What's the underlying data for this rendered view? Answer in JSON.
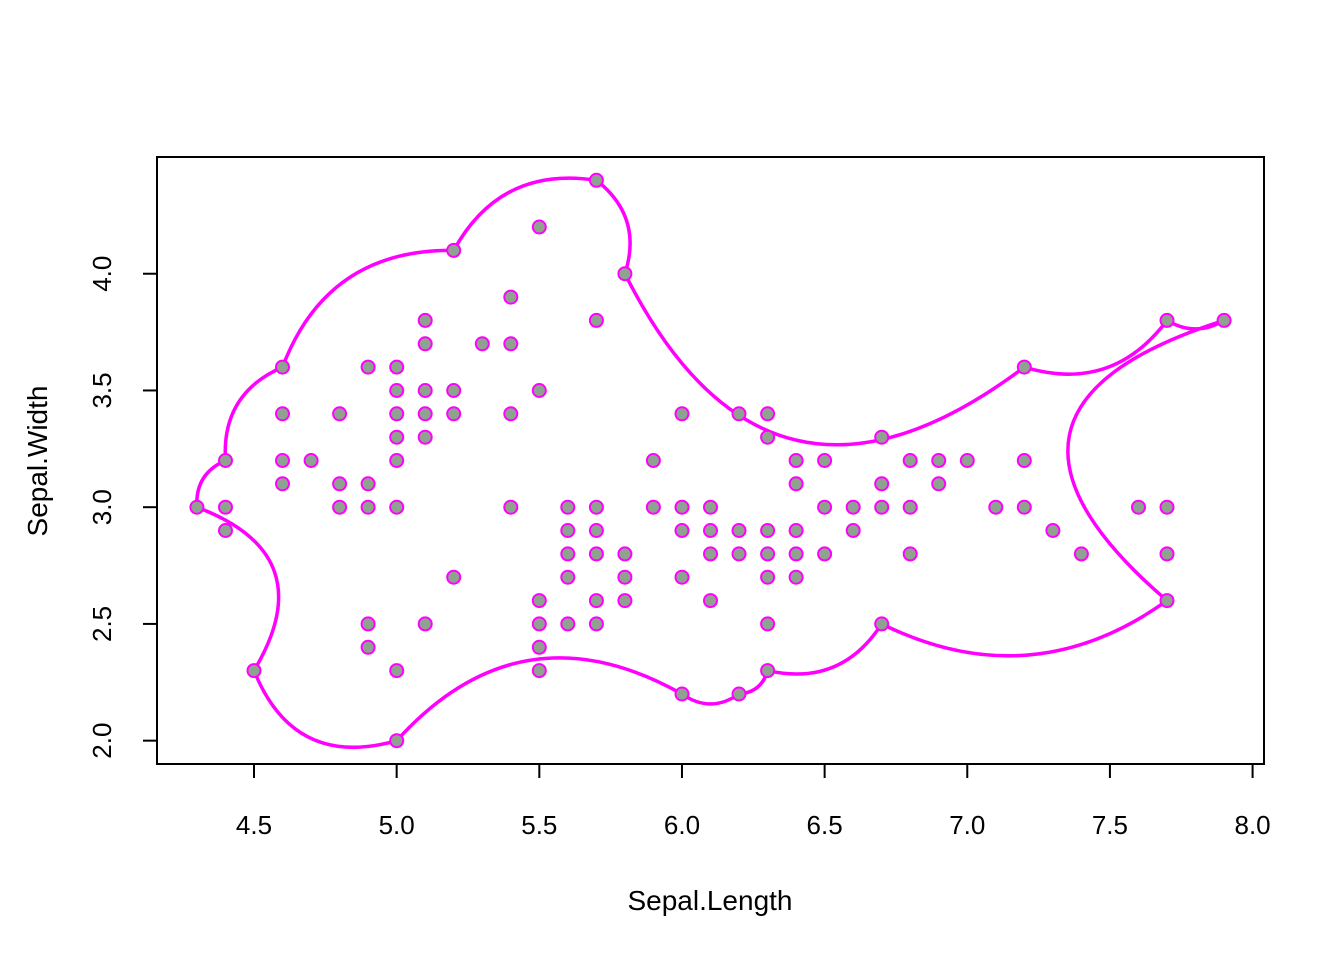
{
  "chart_data": {
    "type": "scatter",
    "title": "",
    "xlabel": "Sepal.Length",
    "ylabel": "Sepal.Width",
    "xlim": [
      4.16,
      8.04
    ],
    "ylim": [
      1.9,
      4.5
    ],
    "x_ticks": [
      4.5,
      5.0,
      5.5,
      6.0,
      6.5,
      7.0,
      7.5,
      8.0
    ],
    "x_tick_labels": [
      "4.5",
      "5.0",
      "5.5",
      "6.0",
      "6.5",
      "7.0",
      "7.5",
      "8.0"
    ],
    "y_ticks": [
      2.0,
      2.5,
      3.0,
      3.5,
      4.0
    ],
    "y_tick_labels": [
      "2.0",
      "2.5",
      "3.0",
      "3.5",
      "4.0"
    ],
    "grid": false,
    "point_fill": "#8fa28f",
    "point_stroke": "#ff00ff",
    "hull_color": "#ff00ff",
    "points": [
      [
        4.3,
        3.0
      ],
      [
        4.4,
        3.2
      ],
      [
        4.4,
        3.0
      ],
      [
        4.4,
        2.9
      ],
      [
        4.5,
        2.3
      ],
      [
        4.6,
        3.6
      ],
      [
        4.6,
        3.4
      ],
      [
        4.6,
        3.2
      ],
      [
        4.6,
        3.1
      ],
      [
        4.7,
        3.2
      ],
      [
        4.8,
        3.4
      ],
      [
        4.8,
        3.1
      ],
      [
        4.8,
        3.0
      ],
      [
        4.9,
        3.6
      ],
      [
        4.9,
        3.1
      ],
      [
        4.9,
        3.0
      ],
      [
        4.9,
        2.5
      ],
      [
        4.9,
        2.4
      ],
      [
        5.0,
        3.6
      ],
      [
        5.0,
        3.5
      ],
      [
        5.0,
        3.4
      ],
      [
        5.0,
        3.3
      ],
      [
        5.0,
        3.2
      ],
      [
        5.0,
        3.0
      ],
      [
        5.0,
        2.3
      ],
      [
        5.0,
        2.0
      ],
      [
        5.1,
        3.8
      ],
      [
        5.1,
        3.7
      ],
      [
        5.1,
        3.5
      ],
      [
        5.1,
        3.4
      ],
      [
        5.1,
        3.3
      ],
      [
        5.1,
        2.5
      ],
      [
        5.2,
        4.1
      ],
      [
        5.2,
        3.5
      ],
      [
        5.2,
        3.4
      ],
      [
        5.2,
        2.7
      ],
      [
        5.3,
        3.7
      ],
      [
        5.4,
        3.9
      ],
      [
        5.4,
        3.7
      ],
      [
        5.4,
        3.4
      ],
      [
        5.4,
        3.0
      ],
      [
        5.5,
        4.2
      ],
      [
        5.5,
        3.5
      ],
      [
        5.5,
        2.6
      ],
      [
        5.5,
        2.5
      ],
      [
        5.5,
        2.4
      ],
      [
        5.5,
        2.3
      ],
      [
        5.6,
        3.0
      ],
      [
        5.6,
        2.9
      ],
      [
        5.6,
        2.8
      ],
      [
        5.6,
        2.7
      ],
      [
        5.6,
        2.5
      ],
      [
        5.7,
        4.4
      ],
      [
        5.7,
        3.8
      ],
      [
        5.7,
        3.0
      ],
      [
        5.7,
        2.9
      ],
      [
        5.7,
        2.8
      ],
      [
        5.7,
        2.6
      ],
      [
        5.7,
        2.5
      ],
      [
        5.8,
        4.0
      ],
      [
        5.8,
        2.8
      ],
      [
        5.8,
        2.7
      ],
      [
        5.8,
        2.6
      ],
      [
        5.9,
        3.2
      ],
      [
        5.9,
        3.0
      ],
      [
        6.0,
        3.4
      ],
      [
        6.0,
        3.0
      ],
      [
        6.0,
        2.9
      ],
      [
        6.0,
        2.7
      ],
      [
        6.0,
        2.2
      ],
      [
        6.1,
        3.0
      ],
      [
        6.1,
        2.9
      ],
      [
        6.1,
        2.8
      ],
      [
        6.1,
        2.6
      ],
      [
        6.2,
        3.4
      ],
      [
        6.2,
        2.9
      ],
      [
        6.2,
        2.8
      ],
      [
        6.2,
        2.2
      ],
      [
        6.3,
        3.4
      ],
      [
        6.3,
        3.3
      ],
      [
        6.3,
        2.9
      ],
      [
        6.3,
        2.8
      ],
      [
        6.3,
        2.7
      ],
      [
        6.3,
        2.5
      ],
      [
        6.3,
        2.3
      ],
      [
        6.4,
        3.2
      ],
      [
        6.4,
        3.1
      ],
      [
        6.4,
        2.9
      ],
      [
        6.4,
        2.8
      ],
      [
        6.4,
        2.7
      ],
      [
        6.5,
        3.2
      ],
      [
        6.5,
        3.0
      ],
      [
        6.5,
        2.8
      ],
      [
        6.6,
        3.0
      ],
      [
        6.6,
        2.9
      ],
      [
        6.7,
        3.3
      ],
      [
        6.7,
        3.1
      ],
      [
        6.7,
        3.0
      ],
      [
        6.7,
        2.5
      ],
      [
        6.8,
        3.2
      ],
      [
        6.8,
        3.0
      ],
      [
        6.8,
        2.8
      ],
      [
        6.9,
        3.2
      ],
      [
        6.9,
        3.1
      ],
      [
        7.0,
        3.2
      ],
      [
        7.1,
        3.0
      ],
      [
        7.2,
        3.6
      ],
      [
        7.2,
        3.2
      ],
      [
        7.2,
        3.0
      ],
      [
        7.3,
        2.9
      ],
      [
        7.4,
        2.8
      ],
      [
        7.6,
        3.0
      ],
      [
        7.7,
        3.8
      ],
      [
        7.7,
        3.0
      ],
      [
        7.7,
        2.8
      ],
      [
        7.7,
        2.6
      ],
      [
        7.9,
        3.8
      ]
    ],
    "hull_vertices": [
      [
        4.3,
        3.0
      ],
      [
        4.4,
        3.2
      ],
      [
        4.6,
        3.6
      ],
      [
        5.2,
        4.1
      ],
      [
        5.7,
        4.4
      ],
      [
        5.8,
        4.0
      ],
      [
        7.2,
        3.6
      ],
      [
        7.7,
        3.8
      ],
      [
        7.9,
        3.8
      ],
      [
        7.7,
        2.6
      ],
      [
        6.7,
        2.5
      ],
      [
        6.3,
        2.3
      ],
      [
        6.2,
        2.2
      ],
      [
        6.0,
        2.2
      ],
      [
        5.0,
        2.0
      ],
      [
        4.5,
        2.3
      ]
    ],
    "hull_curvature": [
      0.35,
      0.35,
      0.35,
      0.35,
      0.35,
      -0.6,
      -0.35,
      -0.3,
      -0.9,
      0.3,
      0.35,
      0.35,
      0.35,
      -0.4,
      0.45,
      -0.6
    ]
  }
}
